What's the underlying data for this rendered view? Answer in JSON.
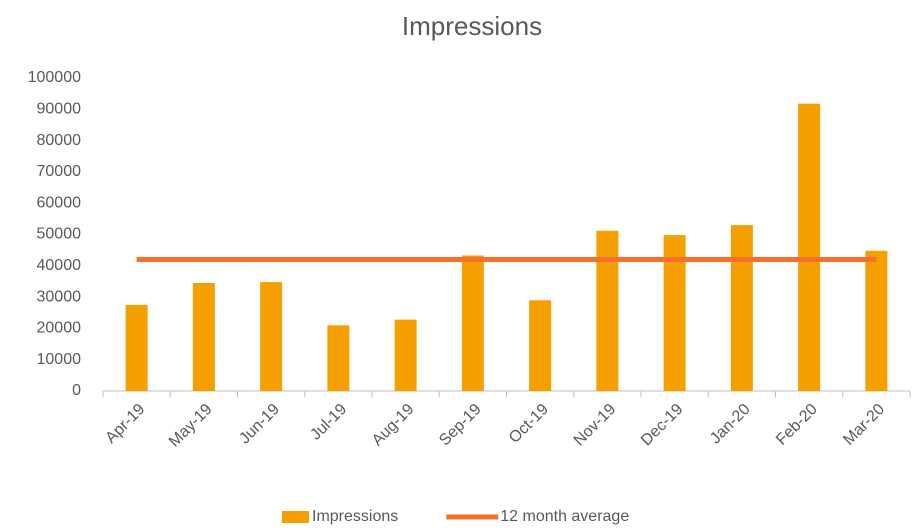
{
  "chart_data": {
    "type": "bar",
    "title": "Impressions",
    "categories": [
      "Apr-19",
      "May-19",
      "Jun-19",
      "Jul-19",
      "Aug-19",
      "Sep-19",
      "Oct-19",
      "Nov-19",
      "Dec-19",
      "Jan-20",
      "Feb-20",
      "Mar-20"
    ],
    "series": [
      {
        "name": "Impressions",
        "type": "bar",
        "color": "#f5a000",
        "values": [
          27500,
          34500,
          34800,
          21000,
          22800,
          43300,
          29000,
          51200,
          49800,
          53000,
          91800,
          44800
        ]
      },
      {
        "name": "12 month average",
        "type": "line",
        "color": "#f4702c",
        "values": [
          42000,
          42000,
          42000,
          42000,
          42000,
          42000,
          42000,
          42000,
          42000,
          42000,
          42000,
          42000
        ]
      }
    ],
    "ylim": [
      0,
      100000
    ],
    "yticks": [
      0,
      10000,
      20000,
      30000,
      40000,
      50000,
      60000,
      70000,
      80000,
      90000,
      100000
    ],
    "grid": false,
    "legend": "bottom"
  }
}
